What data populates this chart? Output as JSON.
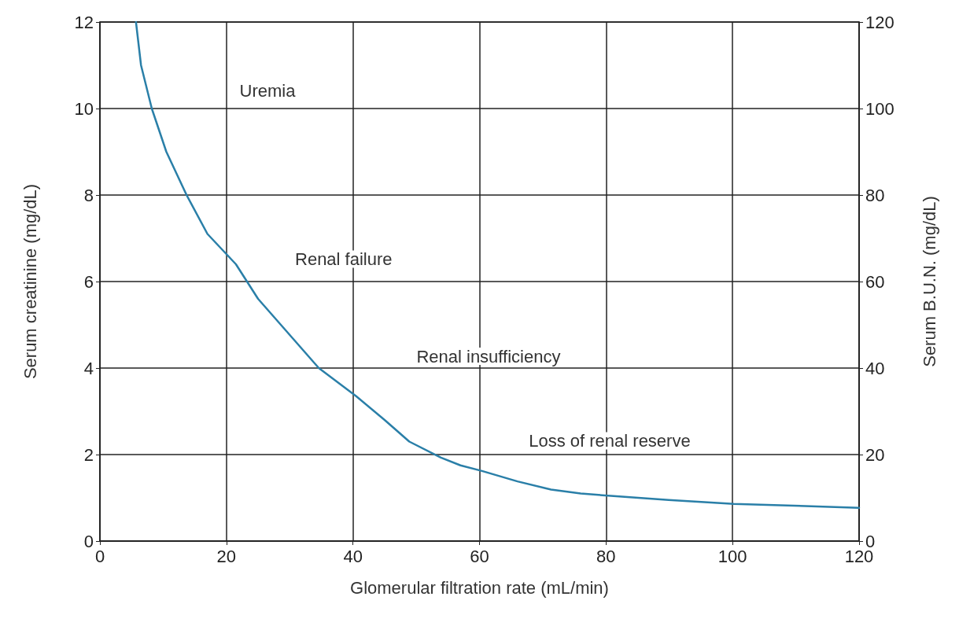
{
  "chart_data": {
    "type": "line",
    "xlabel": "Glomerular filtration rate (mL/min)",
    "ylabel": "Serum creatinine (mg/dL)",
    "y2label": "Serum B.U.N. (mg/dL)",
    "series": [
      {
        "color": "#2a7fa8",
        "x": [
          5.7,
          6.5,
          8.2,
          10.5,
          13.7,
          17,
          21.5,
          25,
          28,
          31,
          34.6,
          40.5,
          45,
          48.9,
          53.9,
          57,
          60.4,
          66,
          71.3,
          76,
          81.2,
          89.9,
          100.2,
          120
        ],
        "values": [
          12,
          11,
          10,
          9,
          8,
          7.1,
          6.4,
          5.6,
          5.1,
          4.6,
          4.0,
          3.35,
          2.8,
          2.3,
          1.93,
          1.75,
          1.62,
          1.38,
          1.19,
          1.1,
          1.04,
          0.95,
          0.86,
          0.77
        ]
      }
    ],
    "xlim": [
      0,
      120
    ],
    "xticks": [
      0,
      20,
      40,
      60,
      80,
      100,
      120
    ],
    "ylim": [
      0,
      12
    ],
    "yticks": [
      0,
      2,
      4,
      6,
      8,
      10,
      12
    ],
    "y2lim": [
      0,
      120
    ],
    "y2ticks": [
      0,
      20,
      40,
      60,
      80,
      100,
      120
    ],
    "grid": true,
    "marker": "none",
    "line_style": "solid",
    "annotations": [
      "Uremia",
      "Renal failure",
      "Renal insufficiency",
      "Loss of renal reserve"
    ]
  }
}
